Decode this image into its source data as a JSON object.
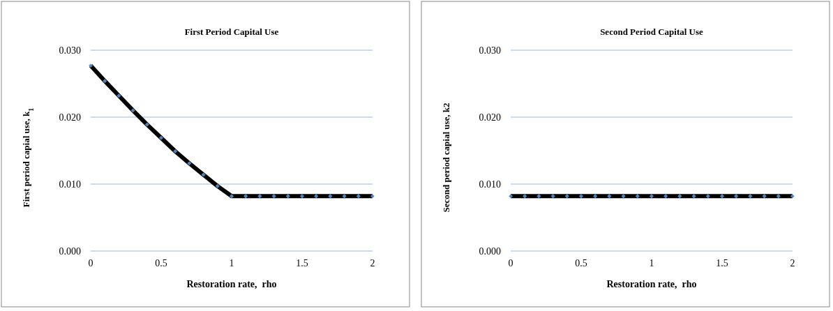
{
  "chart_data": [
    {
      "type": "line",
      "title": "First Period Capital Use",
      "xlabel": "Restoration rate,  rho",
      "ylabel": "First period capial use, k$_{1}$",
      "x": [
        0,
        0.1,
        0.2,
        0.3,
        0.4,
        0.5,
        0.6,
        0.7,
        0.8,
        0.9,
        1,
        1.1,
        1.2,
        1.3,
        1.4,
        1.5,
        1.6,
        1.7,
        1.8,
        1.9,
        2
      ],
      "series": [
        {
          "color": "#000000",
          "values": [
            0.0277,
            0.0254,
            0.0232,
            0.021,
            0.0189,
            0.0169,
            0.0149,
            0.0131,
            0.0114,
            0.0097,
            0.0082,
            0.0082,
            0.0082,
            0.0082,
            0.0082,
            0.0082,
            0.0082,
            0.0082,
            0.0082,
            0.0082,
            0.0082
          ]
        }
      ],
      "xlim": [
        0,
        2
      ],
      "xticks": [
        0,
        0.5,
        1,
        1.5,
        2
      ],
      "ylim": [
        0,
        0.03
      ],
      "yticks": [
        {
          "value": 0,
          "label": "0.000"
        },
        {
          "value": 0.01,
          "label": "0.010"
        },
        {
          "value": 0.02,
          "label": "0.020"
        },
        {
          "value": 0.03,
          "label": "0.030"
        }
      ],
      "grid": "y",
      "marker": "diamond"
    },
    {
      "type": "line",
      "title": "Second Period Capital Use",
      "xlabel": "Restoration rate,  rho",
      "ylabel": "Second period capial use, k2",
      "x": [
        0,
        0.1,
        0.2,
        0.3,
        0.4,
        0.5,
        0.6,
        0.7,
        0.8,
        0.9,
        1,
        1.1,
        1.2,
        1.3,
        1.4,
        1.5,
        1.6,
        1.7,
        1.8,
        1.9,
        2
      ],
      "series": [
        {
          "color": "#000000",
          "values": [
            0.0082,
            0.0082,
            0.0082,
            0.0082,
            0.0082,
            0.0082,
            0.0082,
            0.0082,
            0.0082,
            0.0082,
            0.0082,
            0.0082,
            0.0082,
            0.0082,
            0.0082,
            0.0082,
            0.0082,
            0.0082,
            0.0082,
            0.0082,
            0.0082
          ]
        }
      ],
      "xlim": [
        0,
        2
      ],
      "xticks": [
        0,
        0.5,
        1,
        1.5,
        2
      ],
      "ylim": [
        0,
        0.03
      ],
      "yticks": [
        {
          "value": 0,
          "label": "0.000"
        },
        {
          "value": 0.01,
          "label": "0.010"
        },
        {
          "value": 0.02,
          "label": "0.020"
        },
        {
          "value": 0.03,
          "label": "0.030"
        }
      ],
      "grid": "y",
      "marker": "diamond"
    }
  ]
}
